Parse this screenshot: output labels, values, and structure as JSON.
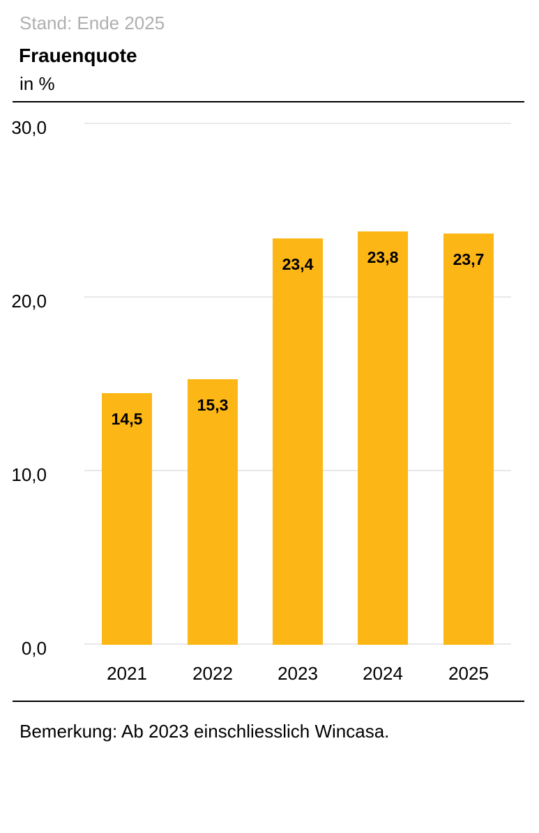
{
  "header": {
    "status": "Stand: Ende 2025",
    "title": "Frauenquote",
    "subtitle": "in %"
  },
  "footer": {
    "note": "Bemerkung: Ab 2023 einschliesslich Wincasa."
  },
  "colors": {
    "bar": "#FCB616",
    "gridline": "#E8E8E8",
    "muted_text": "#AFAFAF",
    "text": "#000000",
    "rule": "#000000"
  },
  "chart_data": {
    "type": "bar",
    "title": "Frauenquote",
    "subtitle": "in %",
    "xlabel": "",
    "ylabel": "in %",
    "categories": [
      "2021",
      "2022",
      "2023",
      "2024",
      "2025"
    ],
    "values": [
      14.5,
      15.3,
      23.4,
      23.8,
      23.7
    ],
    "value_labels": [
      "14,5",
      "15,3",
      "23,4",
      "23,8",
      "23,7"
    ],
    "ylim": [
      0,
      30
    ],
    "yticks": [
      30,
      20,
      10,
      0
    ],
    "ytick_labels": [
      "30,0",
      "20,0",
      "10,0",
      "0,0"
    ],
    "grid": true,
    "legend": "none",
    "bar_color": "#FCB616",
    "value_label_position": "inside-top",
    "note": "Bemerkung: Ab 2023 einschliesslich Wincasa."
  }
}
